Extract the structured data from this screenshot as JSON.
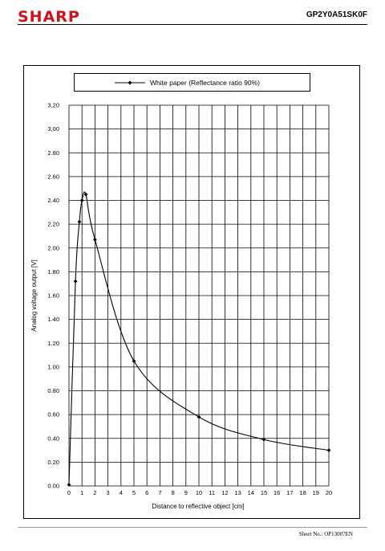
{
  "header": {
    "brand": "SHARP",
    "part_number": "GP2Y0A51SK0F"
  },
  "footer": {
    "sheet_no": "Sheet No.: OP13007EN"
  },
  "colors": {
    "brand": "#d0101b",
    "line": "#000000",
    "grid": "#000000"
  },
  "chart_data": {
    "type": "line",
    "title": "",
    "xlabel": "Distance to reflective object [cm]",
    "ylabel": "Analog voltage output [V]",
    "xlim": [
      0,
      20
    ],
    "ylim": [
      0,
      3.2
    ],
    "x_ticks": [
      0,
      1,
      2,
      3,
      4,
      5,
      6,
      7,
      8,
      9,
      10,
      11,
      12,
      13,
      14,
      15,
      16,
      17,
      18,
      19,
      20
    ],
    "y_ticks": [
      "0.00",
      "0.20",
      "0.40",
      "0.60",
      "0.80",
      "1.00",
      "1.20",
      "1.40",
      "1.60",
      "1.80",
      "2.00",
      "2.20",
      "2.40",
      "2.60",
      "2.80",
      "3,00",
      "3,20"
    ],
    "grid": true,
    "legend_position": "top",
    "series": [
      {
        "name": "White paper (Reflectance ratio 90%)",
        "marker": "diamond",
        "x": [
          0,
          0.5,
          0.8,
          1.0,
          1.3,
          2.0,
          5.0,
          10.0,
          15.0,
          20.0
        ],
        "y": [
          0.01,
          1.72,
          2.22,
          2.4,
          2.45,
          2.07,
          1.05,
          0.58,
          0.39,
          0.3
        ]
      }
    ]
  }
}
